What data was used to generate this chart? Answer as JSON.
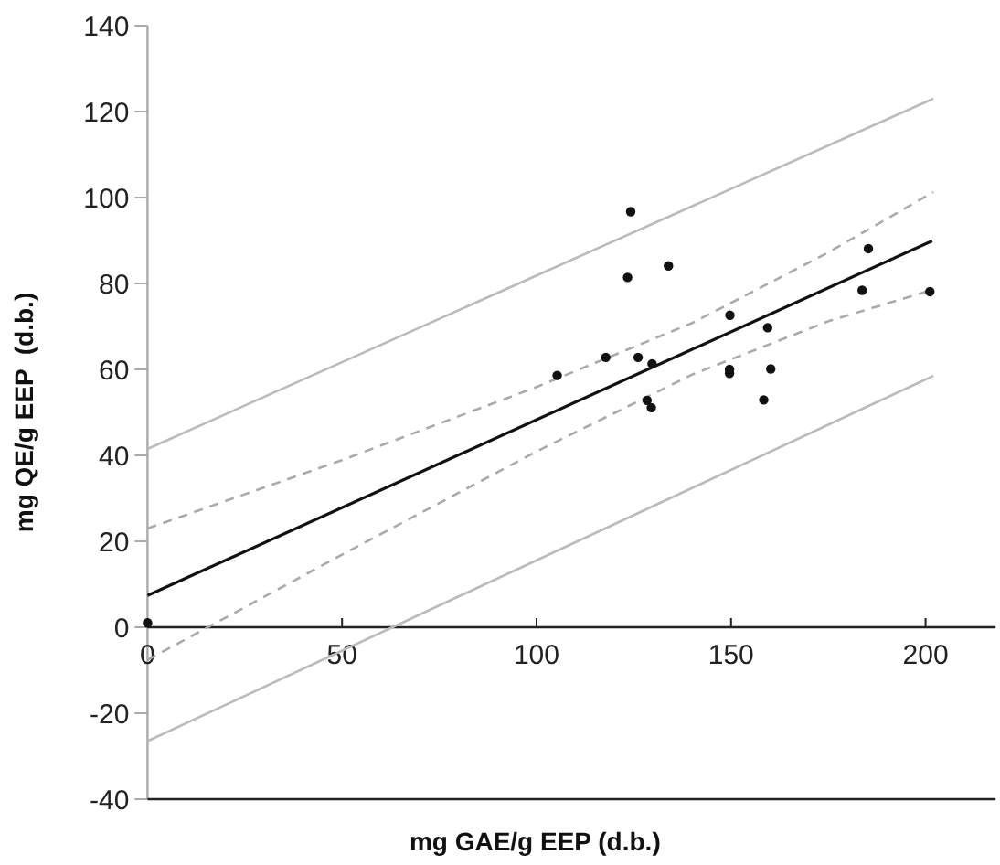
{
  "chart_data": {
    "type": "scatter",
    "xlabel": "mg GAE/g EEP (d.b.)",
    "ylabel": "mg QE/g EEP  (d.b.)",
    "xlim": [
      0,
      218
    ],
    "ylim": [
      -40,
      140
    ],
    "xticks": [
      0,
      50,
      100,
      150,
      200
    ],
    "yticks": [
      -40,
      -20,
      0,
      20,
      40,
      60,
      80,
      100,
      120,
      140
    ],
    "series": [
      {
        "marker": "circle",
        "color": "#111111",
        "x": [
          0,
          105.3,
          117.8,
          123.4,
          124.2,
          126.1,
          128.4,
          129.5,
          129.7,
          133.9,
          149.6,
          149.6,
          149.7,
          158.4,
          159.4,
          160.2,
          183.7,
          185.3,
          201.1
        ],
        "values": [
          1,
          58.6,
          62.8,
          81.4,
          96.7,
          62.8,
          52.8,
          51.1,
          61.3,
          84.1,
          60,
          59.1,
          72.6,
          52.9,
          69.7,
          60.1,
          78.4,
          88.1,
          78.1
        ]
      },
      {
        "type": "line",
        "color": "#111111",
        "line_style": "solid",
        "x": [
          0,
          201.7
        ],
        "values": [
          7.4,
          89.9
        ]
      },
      {
        "type": "line",
        "color": "#aaaaaa",
        "line_style": "dashed",
        "x": [
          0,
          50,
          100,
          140,
          175,
          202
        ],
        "values": [
          23,
          38.9,
          55.9,
          70.8,
          87.2,
          101.3
        ]
      },
      {
        "type": "line",
        "color": "#aaaaaa",
        "line_style": "dashed",
        "x": [
          0,
          50,
          100,
          140,
          175,
          202
        ],
        "values": [
          -7.6,
          16.9,
          40.9,
          58.8,
          71.2,
          78.6
        ]
      },
      {
        "type": "line",
        "color": "#bbbbbb",
        "line_style": "solid",
        "x": [
          0,
          202
        ],
        "values": [
          41.5,
          123
        ]
      },
      {
        "type": "line",
        "color": "#bbbbbb",
        "line_style": "solid",
        "x": [
          0,
          202
        ],
        "values": [
          -26.5,
          58.5
        ]
      }
    ]
  }
}
